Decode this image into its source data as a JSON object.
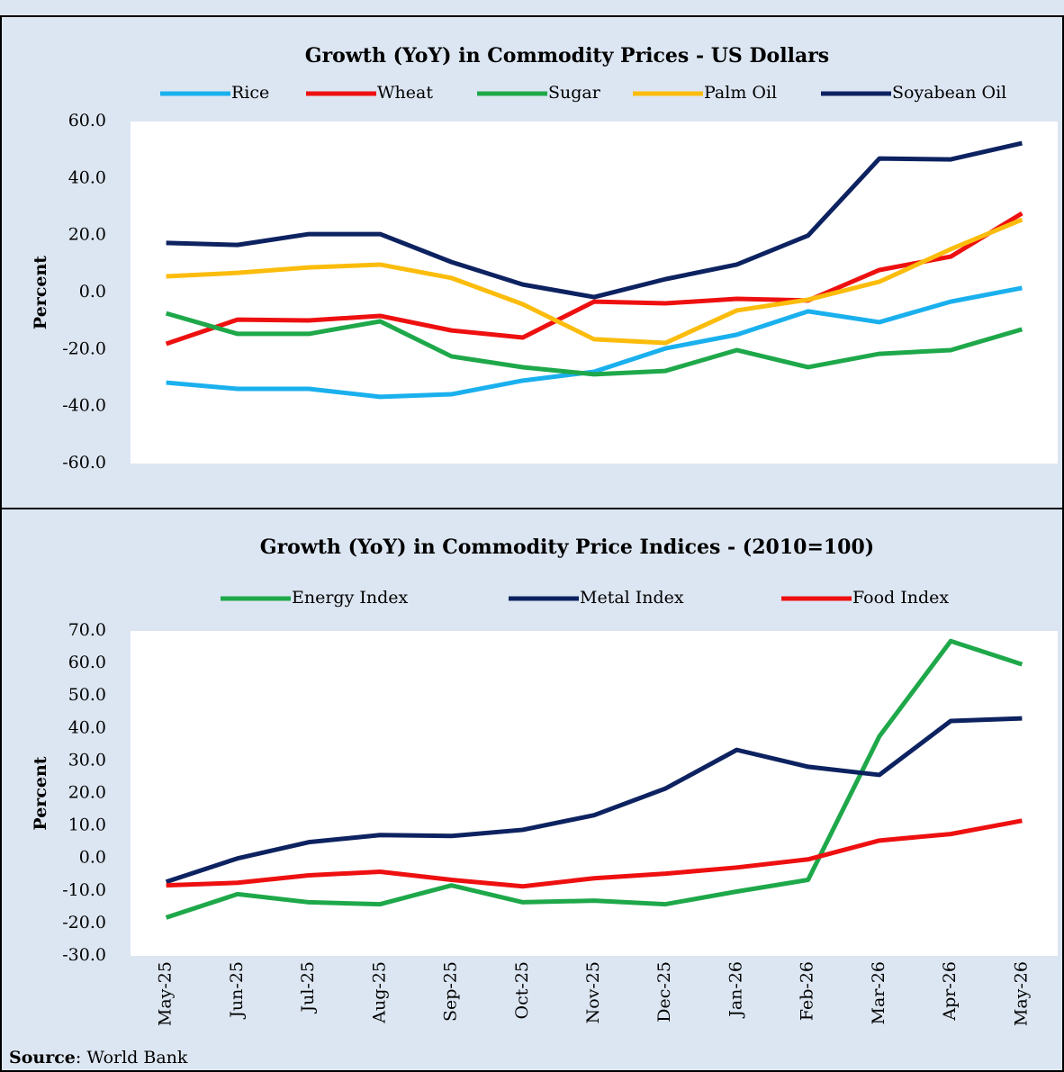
{
  "chart_data": [
    {
      "type": "line",
      "title": "Growth (YoY) in Commodity Prices - US Dollars",
      "ylabel": "Percent",
      "ylim": [
        -60,
        60
      ],
      "yticks": [
        {
          "value": -60,
          "label": "-60.0"
        },
        {
          "value": -40,
          "label": "-40.0"
        },
        {
          "value": -20,
          "label": "-20.0"
        },
        {
          "value": 0,
          "label": "0.0"
        },
        {
          "value": 20,
          "label": "20.0"
        },
        {
          "value": 40,
          "label": "40.0"
        },
        {
          "value": 60,
          "label": "60.0"
        }
      ],
      "series": [
        {
          "name": "Rice",
          "color": "#1ab0ee",
          "values": [
            -31.6,
            -33.8,
            -33.8,
            -36.6,
            -35.7,
            -30.9,
            -27.8,
            -19.6,
            -14.8,
            -6.6,
            -10.4,
            -3.2,
            1.6
          ]
        },
        {
          "name": "Wheat",
          "color": "#ee1010",
          "values": [
            -18.0,
            -9.5,
            -9.8,
            -8.2,
            -13.3,
            -15.8,
            -3.2,
            -3.8,
            -2.2,
            -2.8,
            7.9,
            12.6,
            27.8
          ]
        },
        {
          "name": "Sugar",
          "color": "#1ea84a",
          "values": [
            -7.3,
            -14.5,
            -14.5,
            -10.1,
            -22.4,
            -26.2,
            -28.7,
            -27.5,
            -20.2,
            -26.2,
            -21.5,
            -20.2,
            -12.9
          ]
        },
        {
          "name": "Palm Oil",
          "color": "#fbbc0c",
          "values": [
            5.7,
            6.9,
            8.8,
            9.8,
            5.1,
            -4.1,
            -16.4,
            -17.7,
            -6.3,
            -2.5,
            3.8,
            15.2,
            25.6
          ]
        },
        {
          "name": "Soyabean Oil",
          "color": "#0d2260",
          "values": [
            17.4,
            16.7,
            20.5,
            20.5,
            10.7,
            2.8,
            -1.6,
            4.7,
            9.8,
            20.0,
            47.0,
            46.7,
            52.4
          ]
        }
      ]
    },
    {
      "type": "line",
      "title": "Growth (YoY) in Commodity Price Indices -  (2010=100)",
      "ylabel": "Percent",
      "categories": [
        "May-25",
        "Jun-25",
        "Jul-25",
        "Aug-25",
        "Sep-25",
        "Oct-25",
        "Nov-25",
        "Dec-25",
        "Jan-26",
        "Feb-26",
        "Mar-26",
        "Apr-26",
        "May-26"
      ],
      "ylim": [
        -30,
        70
      ],
      "yticks": [
        {
          "value": -30,
          "label": "-30.0"
        },
        {
          "value": -20,
          "label": "-20.0"
        },
        {
          "value": -10,
          "label": "-10.0"
        },
        {
          "value": 0,
          "label": "0.0"
        },
        {
          "value": 10,
          "label": "10.0"
        },
        {
          "value": 20,
          "label": "20.0"
        },
        {
          "value": 30,
          "label": "30.0"
        },
        {
          "value": 40,
          "label": "40.0"
        },
        {
          "value": 50,
          "label": "50.0"
        },
        {
          "value": 60,
          "label": "60.0"
        },
        {
          "value": 70,
          "label": "70.0"
        }
      ],
      "series": [
        {
          "name": "Energy Index",
          "color": "#1ea84a",
          "values": [
            -18.2,
            -11.0,
            -13.5,
            -14.1,
            -8.3,
            -13.5,
            -13.0,
            -14.1,
            -10.2,
            -6.6,
            37.6,
            66.9,
            59.7
          ]
        },
        {
          "name": "Metal Index",
          "color": "#0d2260",
          "values": [
            -7.2,
            0,
            5.0,
            7.2,
            6.9,
            8.8,
            13.3,
            21.5,
            33.4,
            28.2,
            25.7,
            42.3,
            43.1
          ]
        },
        {
          "name": "Food Index",
          "color": "#ee1010",
          "values": [
            -8.3,
            -7.5,
            -5.2,
            -4.1,
            -6.6,
            -8.6,
            -6.1,
            -4.7,
            -2.8,
            -0.3,
            5.5,
            7.5,
            11.6
          ]
        }
      ]
    }
  ],
  "source": {
    "label": "Source",
    "text": ": World Bank"
  }
}
